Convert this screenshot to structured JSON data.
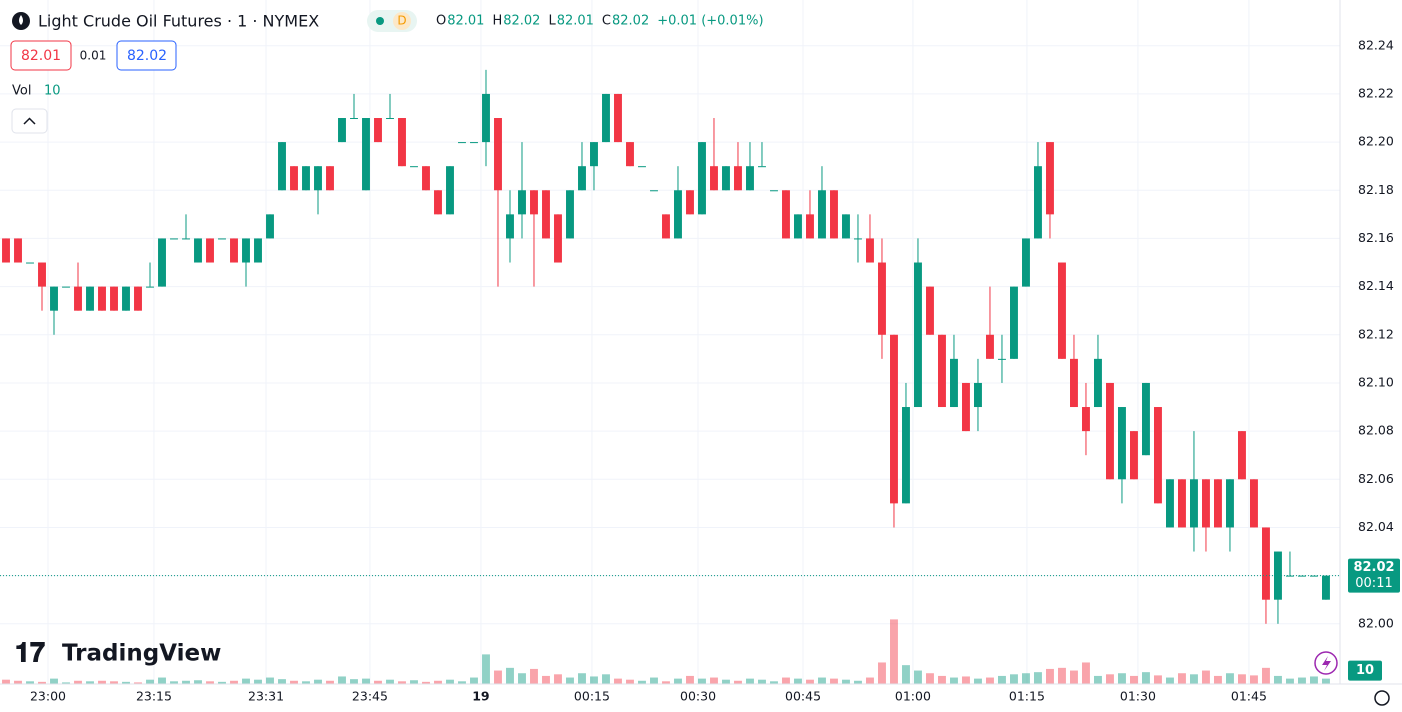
{
  "chart_data": {
    "type": "candlestick",
    "title": "Light Crude Oil Futures · 1 · NYMEX",
    "interval_badge": "D",
    "legend_labels": {
      "open": "O",
      "high": "H",
      "low": "L",
      "close": "C"
    },
    "change": "+0.01 (+0.01%)",
    "bid": 82.01,
    "spread": 0.01,
    "ask": 82.02,
    "volume_title": "Vol",
    "countdown": "00:11",
    "branding": "TradingView",
    "up_color": "#089981",
    "down_color": "#f23645",
    "ylim": [
      81.975,
      82.259
    ],
    "yticks": [
      {
        "value": 82.0,
        "label": "82.00"
      },
      82.02,
      82.04,
      82.06,
      82.08,
      {
        "value": 82.1,
        "label": "82.10"
      },
      82.12,
      82.14,
      82.16,
      82.18,
      {
        "value": 82.2,
        "label": "82.20"
      },
      82.22,
      82.24
    ],
    "xlim": [
      -0.5,
      111.17
    ],
    "xticks": [
      {
        "value": 3.5,
        "label": "23:00"
      },
      {
        "value": 12.33,
        "label": "23:15"
      },
      {
        "value": 21.67,
        "label": "23:31"
      },
      {
        "value": 30.33,
        "label": "23:45"
      },
      {
        "value": 39.58,
        "label": "19"
      },
      {
        "value": 48.83,
        "label": "00:15"
      },
      {
        "value": 57.67,
        "label": "00:30"
      },
      {
        "value": 66.42,
        "label": "00:45"
      },
      {
        "value": 75.58,
        "label": "01:00"
      },
      {
        "value": 85.08,
        "label": "01:15"
      },
      {
        "value": 94.33,
        "label": "01:30"
      },
      {
        "value": 103.58,
        "label": "01:45"
      }
    ],
    "grid": true,
    "volume_lim": [
      0,
      130
    ],
    "candles": [
      [
        82.16,
        82.16,
        82.15,
        82.15
      ],
      [
        82.16,
        82.16,
        82.15,
        82.15
      ],
      [
        82.15,
        82.15,
        82.15,
        82.15
      ],
      [
        82.15,
        82.15,
        82.13,
        82.14
      ],
      [
        82.13,
        82.14,
        82.12,
        82.14
      ],
      [
        82.14,
        82.14,
        82.14,
        82.14
      ],
      [
        82.14,
        82.15,
        82.13,
        82.13
      ],
      [
        82.13,
        82.14,
        82.13,
        82.14
      ],
      [
        82.14,
        82.14,
        82.13,
        82.13
      ],
      [
        82.14,
        82.14,
        82.13,
        82.13
      ],
      [
        82.13,
        82.14,
        82.13,
        82.14
      ],
      [
        82.14,
        82.14,
        82.13,
        82.13
      ],
      [
        82.14,
        82.15,
        82.14,
        82.14
      ],
      [
        82.14,
        82.16,
        82.14,
        82.16
      ],
      [
        82.16,
        82.16,
        82.16,
        82.16
      ],
      [
        82.16,
        82.17,
        82.16,
        82.16
      ],
      [
        82.15,
        82.16,
        82.15,
        82.16
      ],
      [
        82.16,
        82.16,
        82.15,
        82.15
      ],
      [
        82.16,
        82.16,
        82.16,
        82.16
      ],
      [
        82.16,
        82.16,
        82.15,
        82.15
      ],
      [
        82.15,
        82.16,
        82.14,
        82.16
      ],
      [
        82.15,
        82.16,
        82.15,
        82.16
      ],
      [
        82.16,
        82.17,
        82.16,
        82.17
      ],
      [
        82.18,
        82.2,
        82.18,
        82.2
      ],
      [
        82.19,
        82.19,
        82.18,
        82.18
      ],
      [
        82.18,
        82.19,
        82.18,
        82.19
      ],
      [
        82.18,
        82.19,
        82.17,
        82.19
      ],
      [
        82.19,
        82.19,
        82.18,
        82.18
      ],
      [
        82.2,
        82.21,
        82.2,
        82.21
      ],
      [
        82.21,
        82.22,
        82.21,
        82.21
      ],
      [
        82.18,
        82.21,
        82.18,
        82.21
      ],
      [
        82.21,
        82.21,
        82.2,
        82.2
      ],
      [
        82.21,
        82.22,
        82.21,
        82.21
      ],
      [
        82.21,
        82.21,
        82.19,
        82.19
      ],
      [
        82.19,
        82.19,
        82.19,
        82.19
      ],
      [
        82.19,
        82.19,
        82.18,
        82.18
      ],
      [
        82.18,
        82.18,
        82.17,
        82.17
      ],
      [
        82.17,
        82.19,
        82.17,
        82.19
      ],
      [
        82.2,
        82.2,
        82.2,
        82.2
      ],
      [
        82.2,
        82.2,
        82.2,
        82.2
      ],
      [
        82.2,
        82.23,
        82.19,
        82.22
      ],
      [
        82.21,
        82.21,
        82.14,
        82.18
      ],
      [
        82.16,
        82.18,
        82.15,
        82.17
      ],
      [
        82.17,
        82.2,
        82.16,
        82.18
      ],
      [
        82.18,
        82.18,
        82.14,
        82.17
      ],
      [
        82.18,
        82.18,
        82.16,
        82.16
      ],
      [
        82.17,
        82.17,
        82.15,
        82.15
      ],
      [
        82.16,
        82.18,
        82.16,
        82.18
      ],
      [
        82.18,
        82.2,
        82.18,
        82.19
      ],
      [
        82.19,
        82.2,
        82.18,
        82.2
      ],
      [
        82.2,
        82.22,
        82.2,
        82.22
      ],
      [
        82.22,
        82.22,
        82.2,
        82.2
      ],
      [
        82.2,
        82.2,
        82.19,
        82.19
      ],
      [
        82.19,
        82.19,
        82.19,
        82.19
      ],
      [
        82.18,
        82.18,
        82.18,
        82.18
      ],
      [
        82.17,
        82.17,
        82.16,
        82.16
      ],
      [
        82.16,
        82.19,
        82.16,
        82.18
      ],
      [
        82.18,
        82.18,
        82.17,
        82.17
      ],
      [
        82.17,
        82.2,
        82.17,
        82.2
      ],
      [
        82.19,
        82.21,
        82.18,
        82.18
      ],
      [
        82.18,
        82.19,
        82.18,
        82.19
      ],
      [
        82.19,
        82.2,
        82.18,
        82.18
      ],
      [
        82.18,
        82.2,
        82.18,
        82.19
      ],
      [
        82.19,
        82.2,
        82.19,
        82.19
      ],
      [
        82.18,
        82.18,
        82.18,
        82.18
      ],
      [
        82.18,
        82.18,
        82.16,
        82.16
      ],
      [
        82.16,
        82.17,
        82.16,
        82.17
      ],
      [
        82.17,
        82.18,
        82.16,
        82.16
      ],
      [
        82.16,
        82.19,
        82.16,
        82.18
      ],
      [
        82.18,
        82.18,
        82.16,
        82.16
      ],
      [
        82.16,
        82.17,
        82.16,
        82.17
      ],
      [
        82.16,
        82.17,
        82.15,
        82.16
      ],
      [
        82.16,
        82.17,
        82.15,
        82.15
      ],
      [
        82.15,
        82.16,
        82.11,
        82.12
      ],
      [
        82.12,
        82.12,
        82.04,
        82.05
      ],
      [
        82.05,
        82.1,
        82.05,
        82.09
      ],
      [
        82.09,
        82.16,
        82.09,
        82.15
      ],
      [
        82.14,
        82.14,
        82.12,
        82.12
      ],
      [
        82.12,
        82.12,
        82.09,
        82.09
      ],
      [
        82.09,
        82.12,
        82.09,
        82.11
      ],
      [
        82.1,
        82.1,
        82.08,
        82.08
      ],
      [
        82.09,
        82.11,
        82.08,
        82.1
      ],
      [
        82.12,
        82.14,
        82.11,
        82.11
      ],
      [
        82.11,
        82.12,
        82.1,
        82.11
      ],
      [
        82.11,
        82.14,
        82.11,
        82.14
      ],
      [
        82.14,
        82.16,
        82.14,
        82.16
      ],
      [
        82.16,
        82.2,
        82.16,
        82.19
      ],
      [
        82.2,
        82.2,
        82.16,
        82.17
      ],
      [
        82.15,
        82.15,
        82.11,
        82.11
      ],
      [
        82.11,
        82.12,
        82.09,
        82.09
      ],
      [
        82.09,
        82.1,
        82.07,
        82.08
      ],
      [
        82.09,
        82.12,
        82.09,
        82.11
      ],
      [
        82.1,
        82.1,
        82.06,
        82.06
      ],
      [
        82.06,
        82.09,
        82.05,
        82.09
      ],
      [
        82.08,
        82.08,
        82.06,
        82.06
      ],
      [
        82.07,
        82.1,
        82.07,
        82.1
      ],
      [
        82.09,
        82.09,
        82.05,
        82.05
      ],
      [
        82.04,
        82.06,
        82.04,
        82.06
      ],
      [
        82.06,
        82.06,
        82.04,
        82.04
      ],
      [
        82.04,
        82.08,
        82.03,
        82.06
      ],
      [
        82.06,
        82.06,
        82.03,
        82.04
      ],
      [
        82.06,
        82.06,
        82.04,
        82.04
      ],
      [
        82.04,
        82.06,
        82.03,
        82.06
      ],
      [
        82.08,
        82.08,
        82.06,
        82.06
      ],
      [
        82.06,
        82.06,
        82.04,
        82.04
      ],
      [
        82.04,
        82.04,
        82.0,
        82.01
      ],
      [
        82.01,
        82.03,
        82.0,
        82.03
      ],
      [
        82.02,
        82.03,
        82.02,
        82.02
      ],
      [
        82.02,
        82.02,
        82.02,
        82.02
      ],
      [
        82.02,
        82.02,
        82.02,
        82.02
      ],
      [
        82.01,
        82.02,
        82.01,
        82.02
      ]
    ],
    "volume": [
      8,
      6,
      5,
      4,
      10,
      3,
      6,
      5,
      6,
      5,
      4,
      3,
      8,
      12,
      5,
      6,
      7,
      5,
      4,
      6,
      10,
      8,
      12,
      9,
      6,
      5,
      8,
      6,
      14,
      9,
      10,
      6,
      8,
      5,
      7,
      4,
      6,
      8,
      5,
      12,
      55,
      25,
      30,
      20,
      28,
      15,
      18,
      12,
      20,
      14,
      18,
      10,
      8,
      6,
      12,
      5,
      10,
      15,
      10,
      12,
      8,
      6,
      10,
      8,
      5,
      12,
      10,
      8,
      12,
      10,
      8,
      6,
      12,
      40,
      120,
      35,
      25,
      20,
      15,
      12,
      14,
      10,
      12,
      15,
      18,
      20,
      22,
      28,
      30,
      25,
      40,
      15,
      18,
      20,
      15,
      22,
      16,
      12,
      20,
      18,
      25,
      15,
      20,
      18,
      16,
      30,
      15,
      10,
      12,
      14,
      10
    ]
  }
}
